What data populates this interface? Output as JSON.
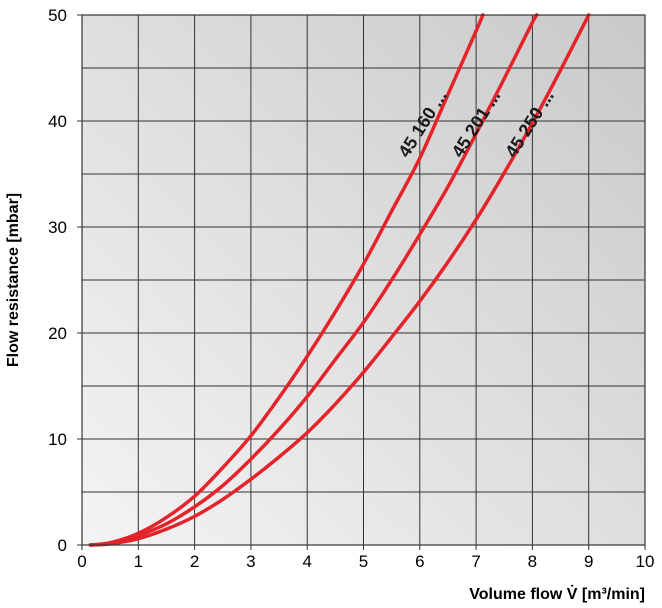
{
  "chart_data": {
    "type": "line",
    "xlabel": "Volume flow V̇ [m³/min]",
    "ylabel": "Flow resistance [mbar]",
    "xlim": [
      0,
      10
    ],
    "ylim": [
      0,
      50
    ],
    "x_ticks": [
      "0",
      "1",
      "2",
      "3",
      "4",
      "5",
      "6",
      "7",
      "8",
      "9",
      "10"
    ],
    "y_ticks": [
      "0",
      "10",
      "20",
      "30",
      "40",
      "50"
    ],
    "grid": true,
    "line_color": "#e4232b",
    "series": [
      {
        "name": "45 160 ...",
        "points": [
          [
            0.15,
            0.0
          ],
          [
            0.5,
            0.2
          ],
          [
            1,
            1.1
          ],
          [
            1.5,
            2.6
          ],
          [
            2,
            4.6
          ],
          [
            2.5,
            7.3
          ],
          [
            3,
            10.3
          ],
          [
            3.5,
            13.9
          ],
          [
            4,
            17.8
          ],
          [
            4.5,
            22.0
          ],
          [
            5,
            26.5
          ],
          [
            5.5,
            31.5
          ],
          [
            6,
            36.5
          ],
          [
            6.5,
            42.5
          ],
          [
            7,
            48.5
          ],
          [
            7.12,
            50
          ]
        ]
      },
      {
        "name": "45 201 ...",
        "points": [
          [
            0.15,
            0.0
          ],
          [
            0.5,
            0.2
          ],
          [
            1,
            0.9
          ],
          [
            1.5,
            2.0
          ],
          [
            2,
            3.6
          ],
          [
            2.5,
            5.6
          ],
          [
            3,
            8.1
          ],
          [
            3.5,
            10.9
          ],
          [
            4,
            14.0
          ],
          [
            4.5,
            17.5
          ],
          [
            5,
            21.0
          ],
          [
            5.5,
            25.0
          ],
          [
            6,
            29.3
          ],
          [
            6.5,
            33.8
          ],
          [
            7,
            38.8
          ],
          [
            7.5,
            44.0
          ],
          [
            8,
            49.3
          ],
          [
            8.08,
            50
          ]
        ]
      },
      {
        "name": "45 250 ...",
        "points": [
          [
            0.15,
            0.0
          ],
          [
            0.5,
            0.1
          ],
          [
            1,
            0.6
          ],
          [
            1.5,
            1.5
          ],
          [
            2,
            2.7
          ],
          [
            2.5,
            4.3
          ],
          [
            3,
            6.2
          ],
          [
            3.5,
            8.3
          ],
          [
            4,
            10.6
          ],
          [
            4.5,
            13.3
          ],
          [
            5,
            16.3
          ],
          [
            5.5,
            19.6
          ],
          [
            6,
            23.0
          ],
          [
            6.5,
            26.7
          ],
          [
            7,
            30.7
          ],
          [
            7.5,
            35.1
          ],
          [
            8,
            39.8
          ],
          [
            8.5,
            44.8
          ],
          [
            9,
            50
          ]
        ]
      }
    ]
  }
}
